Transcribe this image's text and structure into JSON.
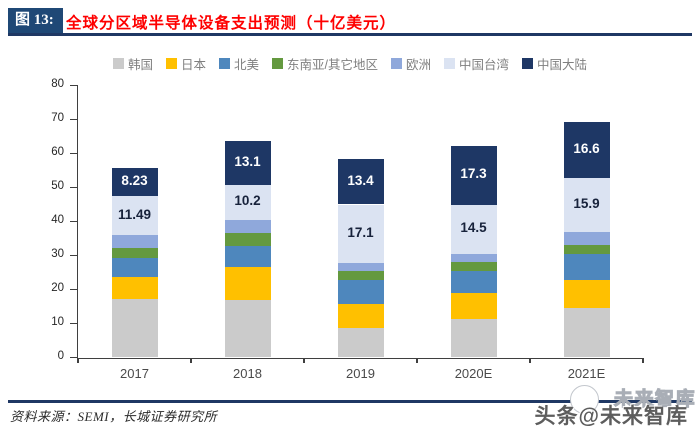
{
  "header": {
    "figure_label": "图 13:",
    "title": "全球分区域半导体设备支出预测（十亿美元）"
  },
  "chart_data": {
    "type": "bar",
    "subtype": "stacked",
    "title": "全球分区域半导体设备支出预测（十亿美元）",
    "unit": "十亿美元",
    "categories": [
      "2017",
      "2018",
      "2019",
      "2020E",
      "2021E"
    ],
    "series": [
      {
        "name": "韩国",
        "color": "#CBCBCB",
        "values": [
          17.1,
          17.0,
          8.8,
          11.3,
          14.5
        ]
      },
      {
        "name": "日本",
        "color": "#FFC000",
        "values": [
          6.5,
          9.6,
          6.8,
          7.7,
          8.3
        ]
      },
      {
        "name": "北美",
        "color": "#4E87BD",
        "values": [
          5.6,
          6.1,
          7.2,
          6.5,
          7.6
        ]
      },
      {
        "name": "东南亚/其它地区",
        "color": "#64993F",
        "values": [
          2.9,
          3.9,
          2.6,
          2.5,
          2.6
        ]
      },
      {
        "name": "欧洲",
        "color": "#8FA8DB",
        "values": [
          3.9,
          3.9,
          2.5,
          2.4,
          3.9
        ]
      },
      {
        "name": "中国台湾",
        "color": "#DBE3F2",
        "values": [
          11.49,
          10.2,
          17.1,
          14.5,
          15.9
        ],
        "data_labels": [
          "11.49",
          "10.2",
          "17.1",
          "14.5",
          "15.9"
        ],
        "label_color": "#17223B"
      },
      {
        "name": "中国大陆",
        "color": "#1E3765",
        "values": [
          8.23,
          13.1,
          13.4,
          17.3,
          16.6
        ],
        "data_labels": [
          "8.23",
          "13.1",
          "13.4",
          "17.3",
          "16.6"
        ],
        "label_color": "#FFFFFF"
      }
    ],
    "ylim": [
      0,
      80
    ],
    "ytick_step": 10,
    "yticks": [
      0,
      10,
      20,
      30,
      40,
      50,
      60,
      70,
      80
    ],
    "grid": false,
    "legend_position": "top"
  },
  "footer": {
    "source": "资料来源：SEMI，长城证券研究所",
    "watermark": "头条@未来智库",
    "watermark_ghost": "未来智库"
  },
  "colors": {
    "header_box": "#1F4876",
    "title_red": "#FE0000",
    "rule_navy": "#1F3864",
    "axis": "#3F3F3F",
    "legend_text": "#7F7F7F"
  }
}
